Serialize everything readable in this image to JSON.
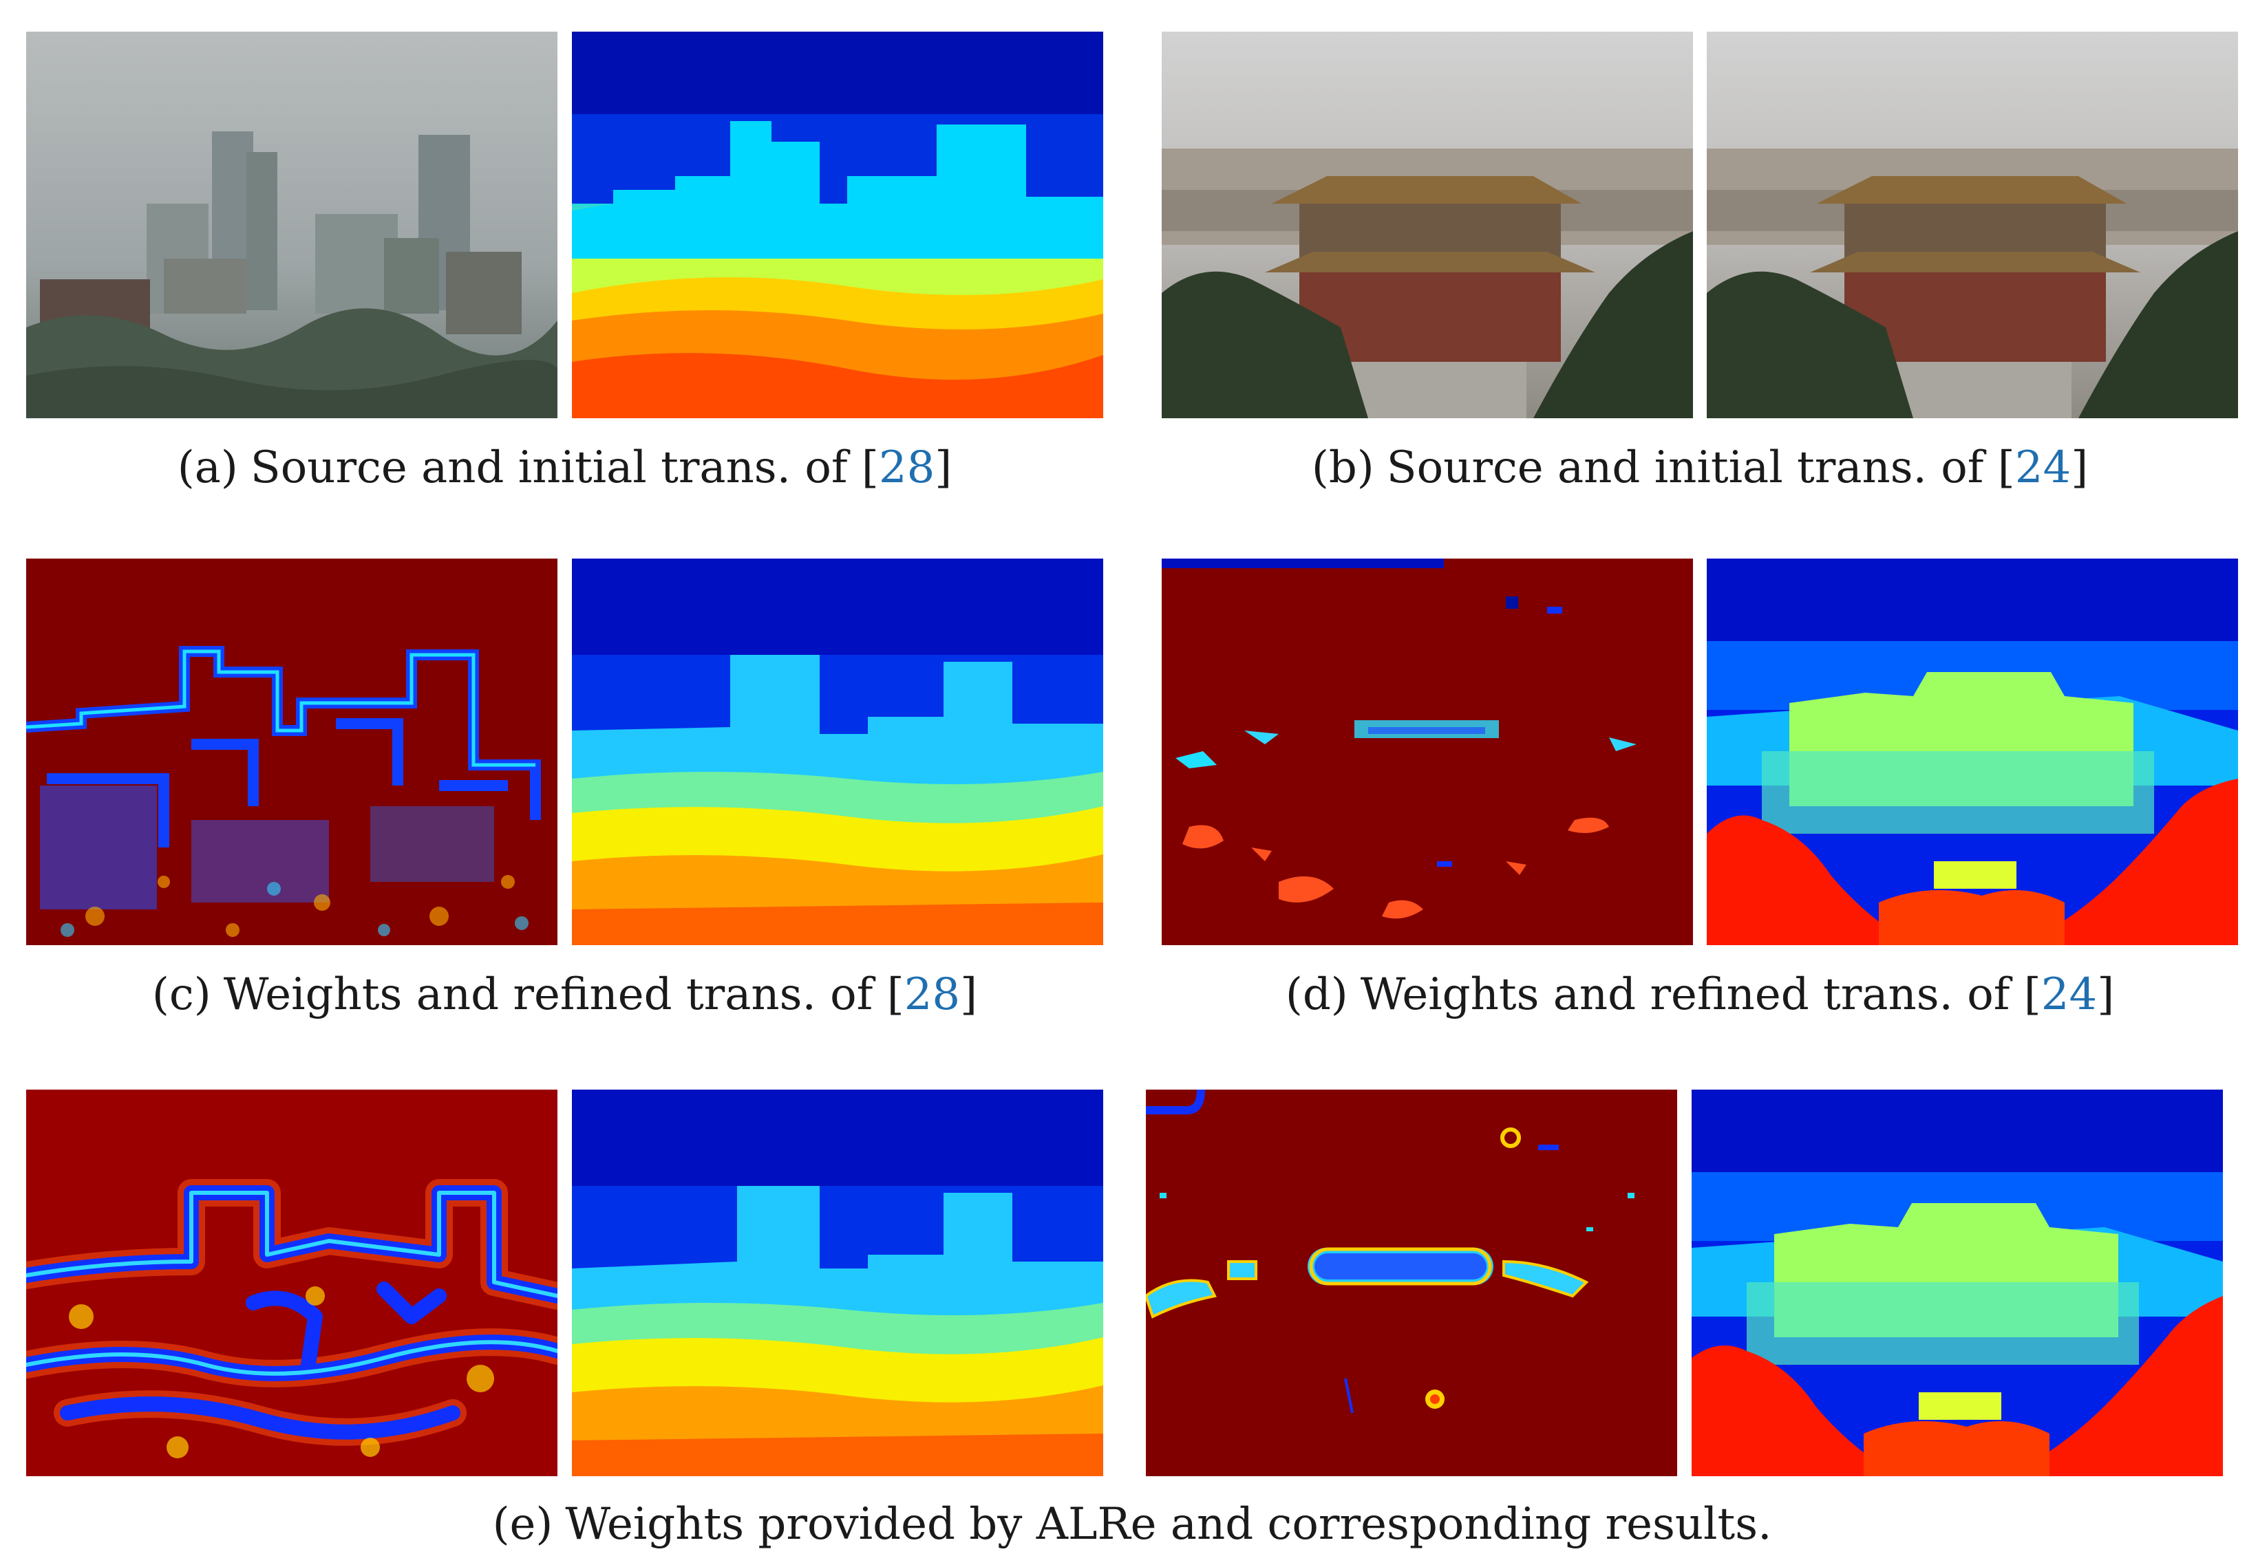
{
  "captions": {
    "a": {
      "label": "(a)",
      "text": "Source and initial trans. of [",
      "cite": "28",
      "close": "]"
    },
    "b": {
      "label": "(b)",
      "text": "Source and initial trans. of [",
      "cite": "24",
      "close": "]"
    },
    "c": {
      "label": "(c)",
      "text": "Weights and refined trans. of [",
      "cite": "28",
      "close": "]"
    },
    "d": {
      "label": "(d)",
      "text": "Weights and refined trans. of [",
      "cite": "24",
      "close": "]"
    },
    "e": {
      "label": "(e)",
      "text": "Weights provided by ALRe and corresponding results."
    }
  },
  "colors": {
    "jet_dark_red": "#800000",
    "jet_red": "#ff2000",
    "jet_orange": "#ff8a00",
    "jet_yellow": "#ffff00",
    "jet_cyan": "#00e5ff",
    "jet_blue": "#0000ff",
    "jet_dark_blue": "#00008f",
    "citation": "#1f6fb0"
  }
}
